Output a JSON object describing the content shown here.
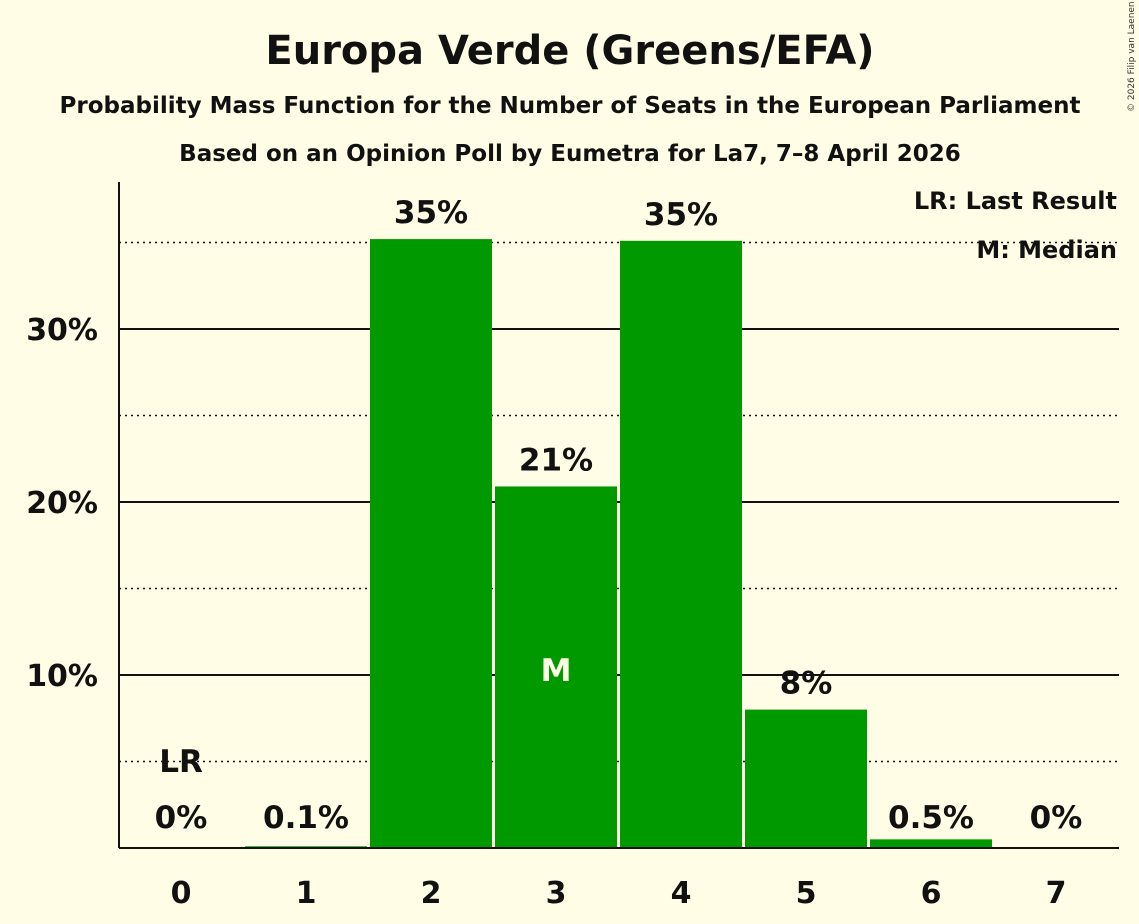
{
  "chart_data": {
    "type": "bar",
    "title": "Europa Verde (Greens/EFA)",
    "subtitle": "Probability Mass Function for the Number of Seats in the European Parliament",
    "subtitle2": "Based on an Opinion Poll by Eumetra for La7, 7–8 April 2026",
    "copyright": "© 2026 Filip van Laenen",
    "xlabel": "",
    "ylabel": "",
    "categories": [
      "0",
      "1",
      "2",
      "3",
      "4",
      "5",
      "6",
      "7"
    ],
    "values": [
      0,
      0.1,
      35.2,
      20.9,
      35.1,
      8.0,
      0.5,
      0
    ],
    "labels": [
      "0%",
      "0.1%",
      "35%",
      "21%",
      "35%",
      "8%",
      "0.5%",
      "0%"
    ],
    "ylim": [
      0,
      38.5
    ],
    "yticks": [
      10,
      20,
      30
    ],
    "ytick_labels": [
      "10%",
      "20%",
      "30%"
    ],
    "minor_grid": [
      5,
      15,
      25,
      35
    ],
    "bar_color": "#009900",
    "last_result_index": 0,
    "last_result_marker": "LR",
    "median_index": 3,
    "median_marker": "M",
    "legend": [
      "LR: Last Result",
      "M: Median"
    ]
  }
}
